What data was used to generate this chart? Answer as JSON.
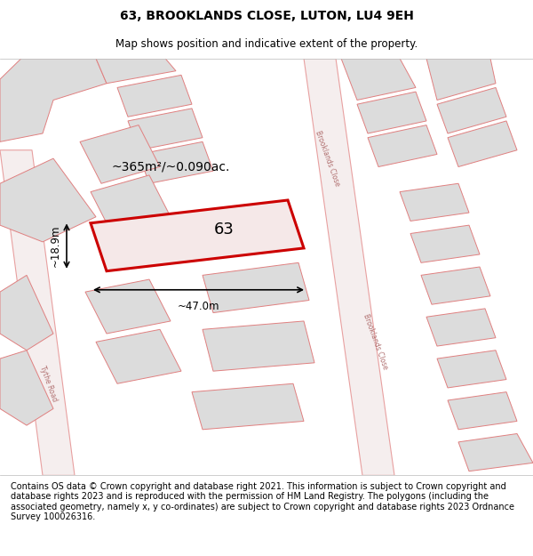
{
  "title": "63, BROOKLANDS CLOSE, LUTON, LU4 9EH",
  "subtitle": "Map shows position and indicative extent of the property.",
  "footer": "Contains OS data © Crown copyright and database right 2021. This information is subject to Crown copyright and database rights 2023 and is reproduced with the permission of HM Land Registry. The polygons (including the associated geometry, namely x, y co-ordinates) are subject to Crown copyright and database rights 2023 Ordnance Survey 100026316.",
  "map_bg": "#f7f2f2",
  "title_fontsize": 10,
  "subtitle_fontsize": 8.5,
  "footer_fontsize": 7,
  "highlight_color": "#cc0000",
  "road_outline_color": "#e8a0a0",
  "building_fill": "#dcdcdc",
  "building_edge": "#e08080",
  "area_text": "~365m²/~0.090ac.",
  "label_63": "63",
  "dim_width": "~47.0m",
  "dim_height": "~18.9m",
  "road_label_bc1": "Brooklands Close",
  "road_label_bc2": "Brooklands Close",
  "road_label_tr": "Tythe Road"
}
